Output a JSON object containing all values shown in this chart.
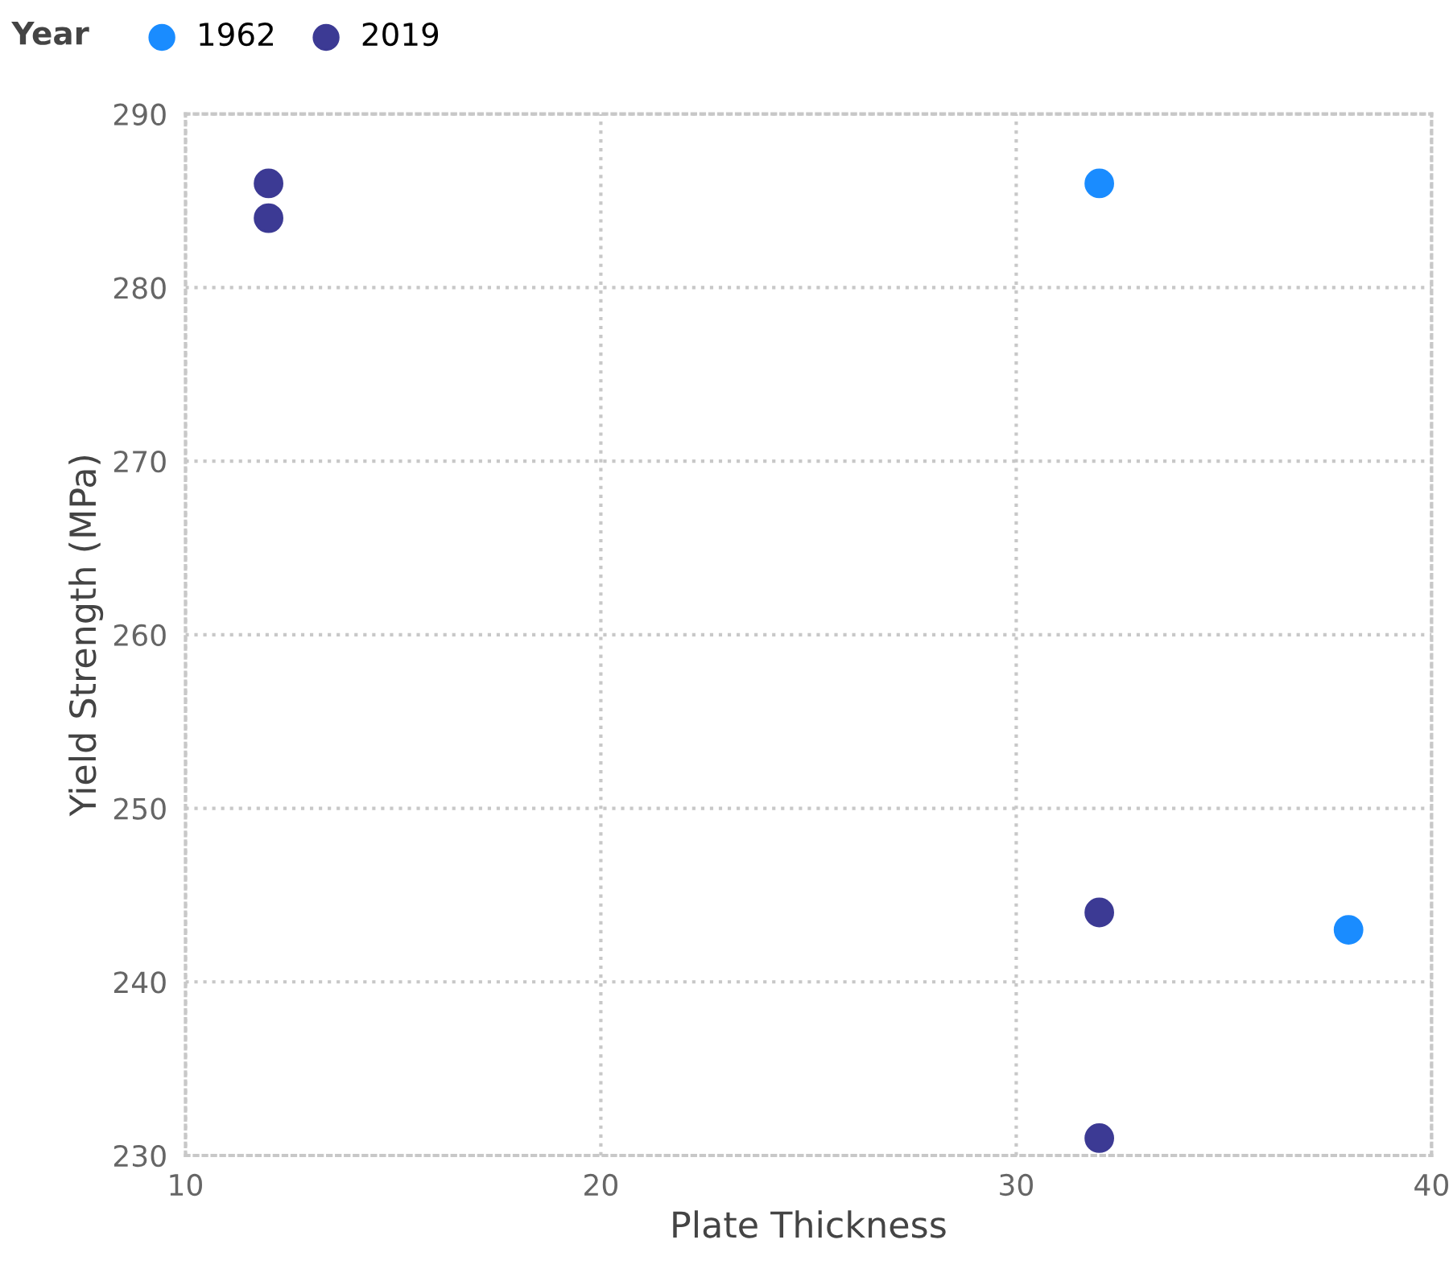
{
  "chart_data": {
    "type": "scatter",
    "xlabel": "Plate Thickness",
    "ylabel": "Yield Strength (MPa)",
    "legend_title": "Year",
    "series": [
      {
        "name": "1962",
        "color": "#1a8cff",
        "x": [
          32,
          38
        ],
        "values": [
          286,
          243
        ]
      },
      {
        "name": "2019",
        "color": "#3c3a94",
        "x": [
          12,
          12,
          32,
          32
        ],
        "values": [
          286,
          284,
          244,
          231
        ]
      }
    ],
    "xlim": [
      10,
      40
    ],
    "xticks": [
      10,
      20,
      30,
      40
    ],
    "ylim": [
      230,
      290
    ],
    "yticks": [
      230,
      240,
      250,
      260,
      270,
      280,
      290
    ],
    "grid": true,
    "legend": "top left",
    "marker": "circle"
  }
}
